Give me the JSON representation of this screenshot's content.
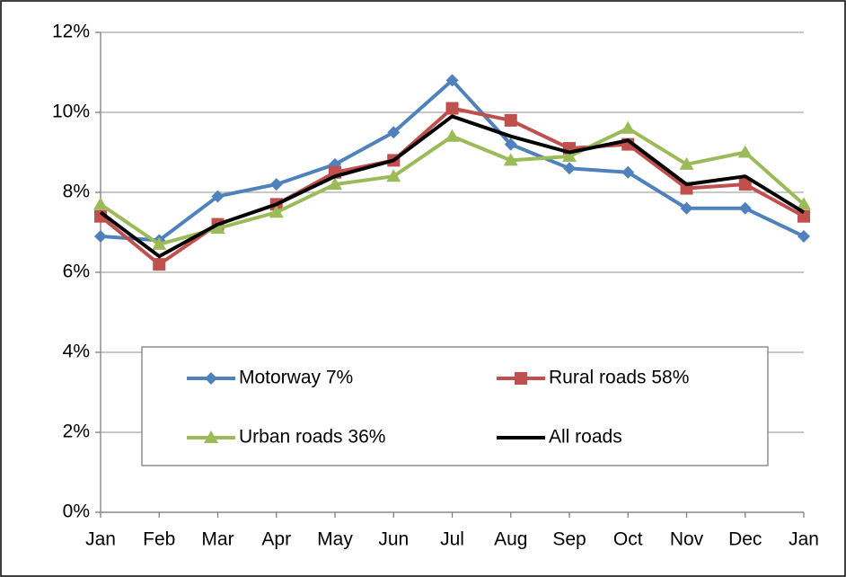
{
  "chart_data": {
    "type": "line",
    "categories": [
      "Jan",
      "Feb",
      "Mar",
      "Apr",
      "May",
      "Jun",
      "Jul",
      "Aug",
      "Sep",
      "Oct",
      "Nov",
      "Dec",
      "Jan"
    ],
    "series": [
      {
        "name": "Motorway 7%",
        "color": "#4f81bd",
        "marker": "diamond",
        "values": [
          6.9,
          6.8,
          7.9,
          8.2,
          8.7,
          9.5,
          10.8,
          9.2,
          8.6,
          8.5,
          7.6,
          7.6,
          6.9
        ]
      },
      {
        "name": "Rural roads 58%",
        "color": "#c0504d",
        "marker": "square",
        "values": [
          7.4,
          6.2,
          7.2,
          7.7,
          8.5,
          8.8,
          10.1,
          9.8,
          9.1,
          9.2,
          8.1,
          8.2,
          7.4
        ]
      },
      {
        "name": "Urban roads 36%",
        "color": "#9bbb59",
        "marker": "triangle",
        "values": [
          7.7,
          6.7,
          7.1,
          7.5,
          8.2,
          8.4,
          9.4,
          8.8,
          8.9,
          9.6,
          8.7,
          9.0,
          7.7
        ]
      },
      {
        "name": "All roads",
        "color": "#000000",
        "marker": "none",
        "values": [
          7.5,
          6.4,
          7.2,
          7.7,
          8.4,
          8.8,
          9.9,
          9.4,
          9.0,
          9.3,
          8.2,
          8.4,
          7.5
        ]
      }
    ],
    "ylim": [
      0,
      12
    ],
    "yticks": [
      {
        "value": 0,
        "label": "0%"
      },
      {
        "value": 2,
        "label": "2%"
      },
      {
        "value": 4,
        "label": "4%"
      },
      {
        "value": 6,
        "label": "6%"
      },
      {
        "value": 8,
        "label": "8%"
      },
      {
        "value": 10,
        "label": "10%"
      },
      {
        "value": 12,
        "label": "12%"
      }
    ],
    "grid": true
  }
}
